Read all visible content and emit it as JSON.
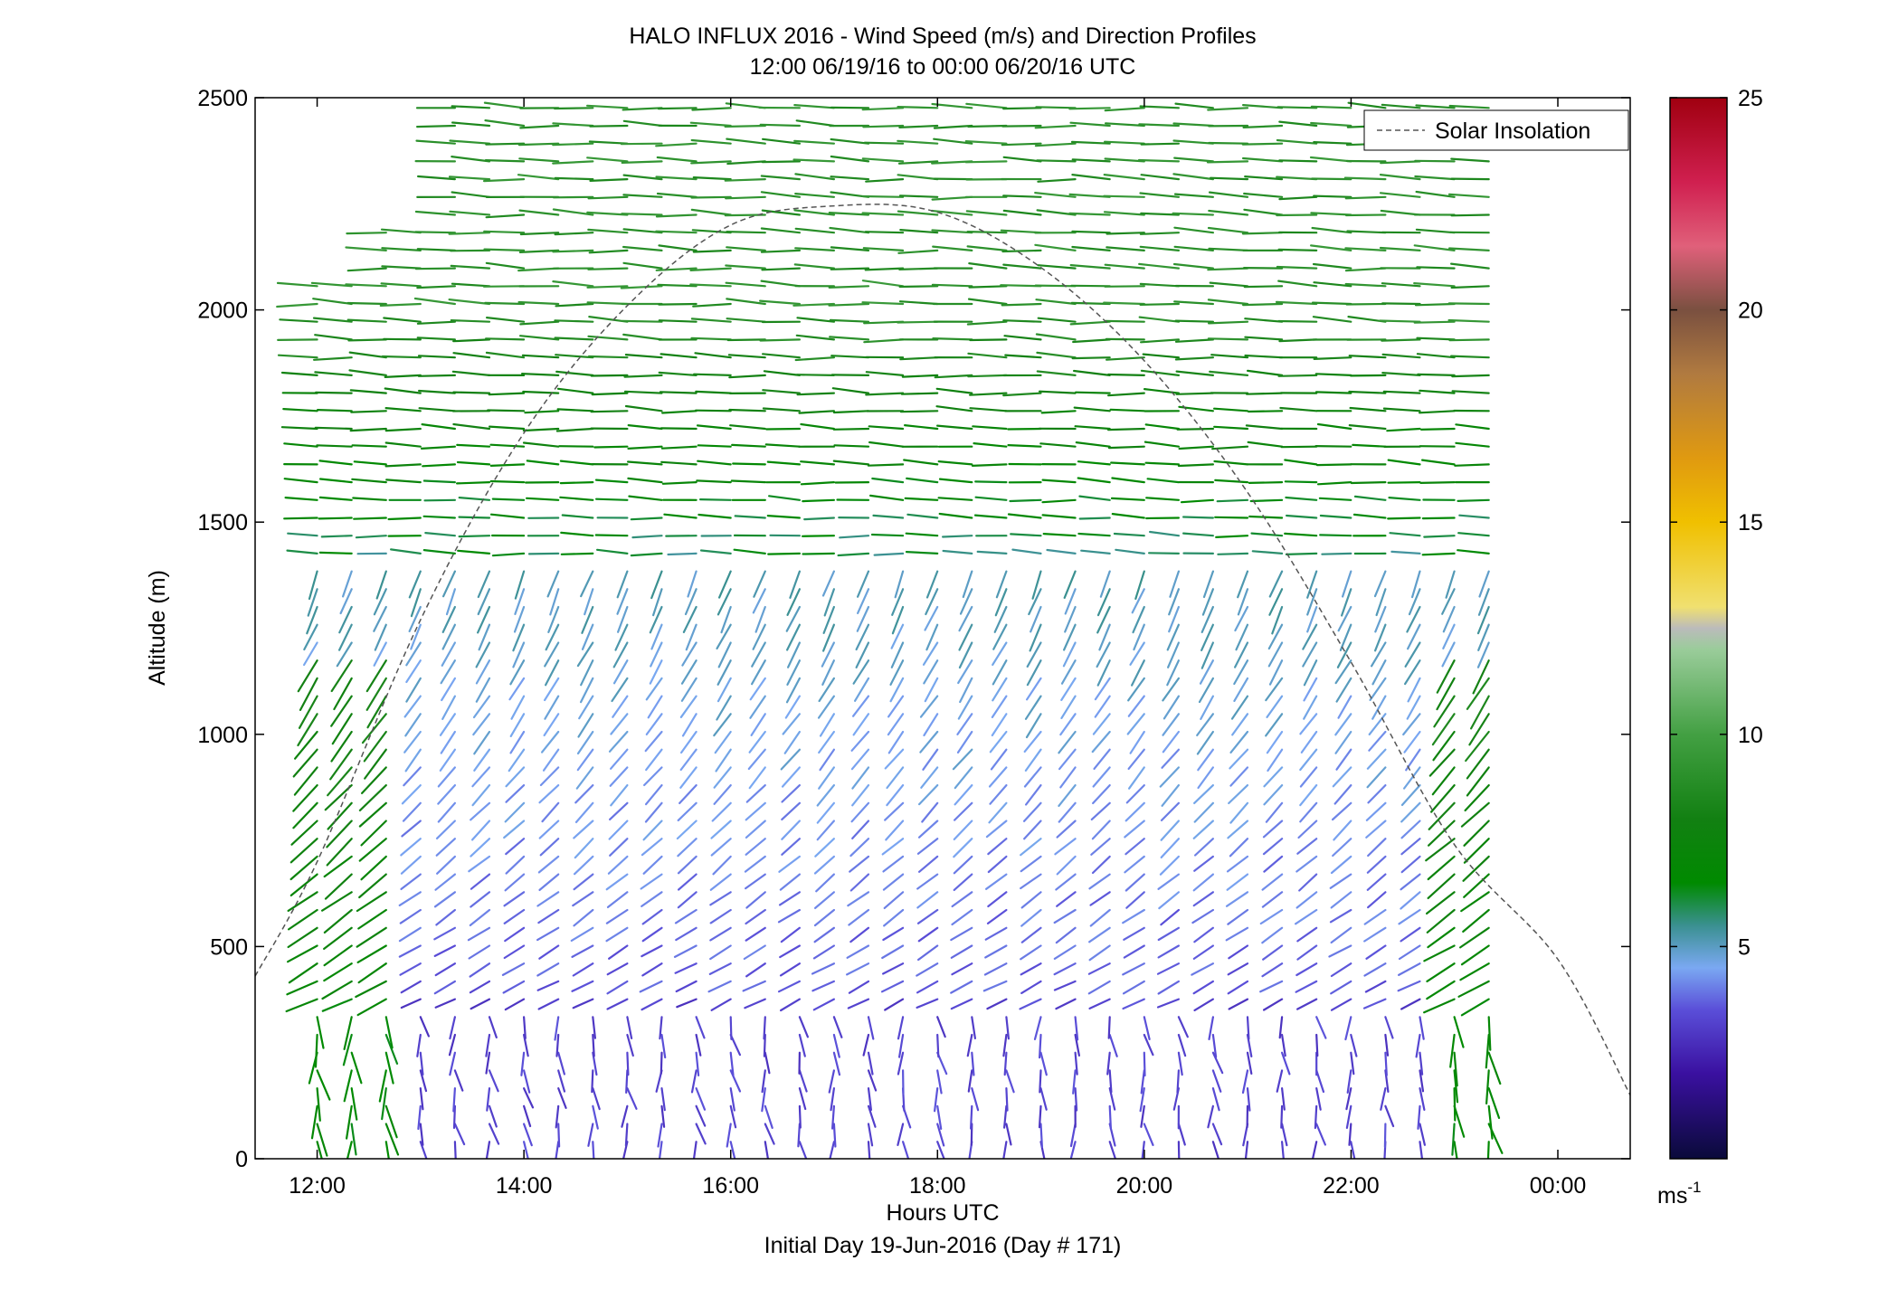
{
  "chart_data": {
    "type": "quiver",
    "title": "HALO INFLUX 2016 - Wind Speed (m/s) and Direction Profiles",
    "subtitle": "12:00 06/19/16 to 00:00 06/20/16  UTC",
    "xlabel": "Hours UTC",
    "xlabel2": "Initial Day 19-Jun-2016 (Day # 171)",
    "ylabel": "Altitude (m)",
    "xlim": [
      11.4,
      24.7
    ],
    "ylim": [
      0,
      2500
    ],
    "x_ticks": [
      12,
      14,
      16,
      18,
      20,
      22,
      24
    ],
    "x_tick_labels": [
      "12:00",
      "14:00",
      "16:00",
      "18:00",
      "20:00",
      "22:00",
      "00:00"
    ],
    "y_ticks": [
      0,
      500,
      1000,
      1500,
      2000,
      2500
    ],
    "y_tick_labels": [
      "0",
      "500",
      "1000",
      "1500",
      "2000",
      "2500"
    ],
    "legend": {
      "entries": [
        "Solar Insolation"
      ],
      "placement": "top-right"
    },
    "colorbar": {
      "label": "ms-1",
      "ticks": [
        5,
        10,
        15,
        20,
        25
      ],
      "tick_labels": [
        "5",
        "10",
        "15",
        "20",
        "25"
      ],
      "range": [
        0,
        25
      ],
      "colors": [
        {
          "v": 0,
          "c": "#0a0a3a"
        },
        {
          "v": 2,
          "c": "#3a10a0"
        },
        {
          "v": 3.5,
          "c": "#5a4ed8"
        },
        {
          "v": 4.5,
          "c": "#7aa8f2"
        },
        {
          "v": 5.5,
          "c": "#3a9090"
        },
        {
          "v": 6.5,
          "c": "#008a00"
        },
        {
          "v": 8,
          "c": "#128012"
        },
        {
          "v": 10,
          "c": "#43a043"
        },
        {
          "v": 12,
          "c": "#9acc9a"
        },
        {
          "v": 12.5,
          "c": "#bbbbbb"
        },
        {
          "v": 13,
          "c": "#f0e070"
        },
        {
          "v": 15,
          "c": "#f0c000"
        },
        {
          "v": 16.5,
          "c": "#e09a10"
        },
        {
          "v": 18.5,
          "c": "#b07a40"
        },
        {
          "v": 20,
          "c": "#7a5040"
        },
        {
          "v": 21.5,
          "c": "#e0607a"
        },
        {
          "v": 23,
          "c": "#d02050"
        },
        {
          "v": 25,
          "c": "#a00010"
        }
      ]
    },
    "solar_insolation": {
      "x": [
        11.4,
        12.0,
        13.0,
        14.0,
        15.0,
        16.0,
        17.0,
        18.0,
        19.0,
        20.0,
        21.0,
        22.0,
        23.0,
        24.0,
        24.7
      ],
      "y": [
        430,
        700,
        1270,
        1710,
        2010,
        2200,
        2245,
        2230,
        2100,
        1880,
        1570,
        1170,
        740,
        470,
        150
      ]
    },
    "wind_profiles": {
      "time_start": 12.0,
      "time_end": 23.6,
      "time_step": 0.3333,
      "altitude_start": 40,
      "altitude_end": 2500,
      "altitude_step": 42,
      "wind_speed_ranges": [
        {
          "altitude": "0-400",
          "speed": "2-4",
          "color": "purple"
        },
        {
          "altitude": "400-1400",
          "speed": "3-5",
          "color": "blue-violet"
        },
        {
          "altitude": "1400-2500",
          "speed": "6-10",
          "color": "green"
        }
      ]
    }
  }
}
